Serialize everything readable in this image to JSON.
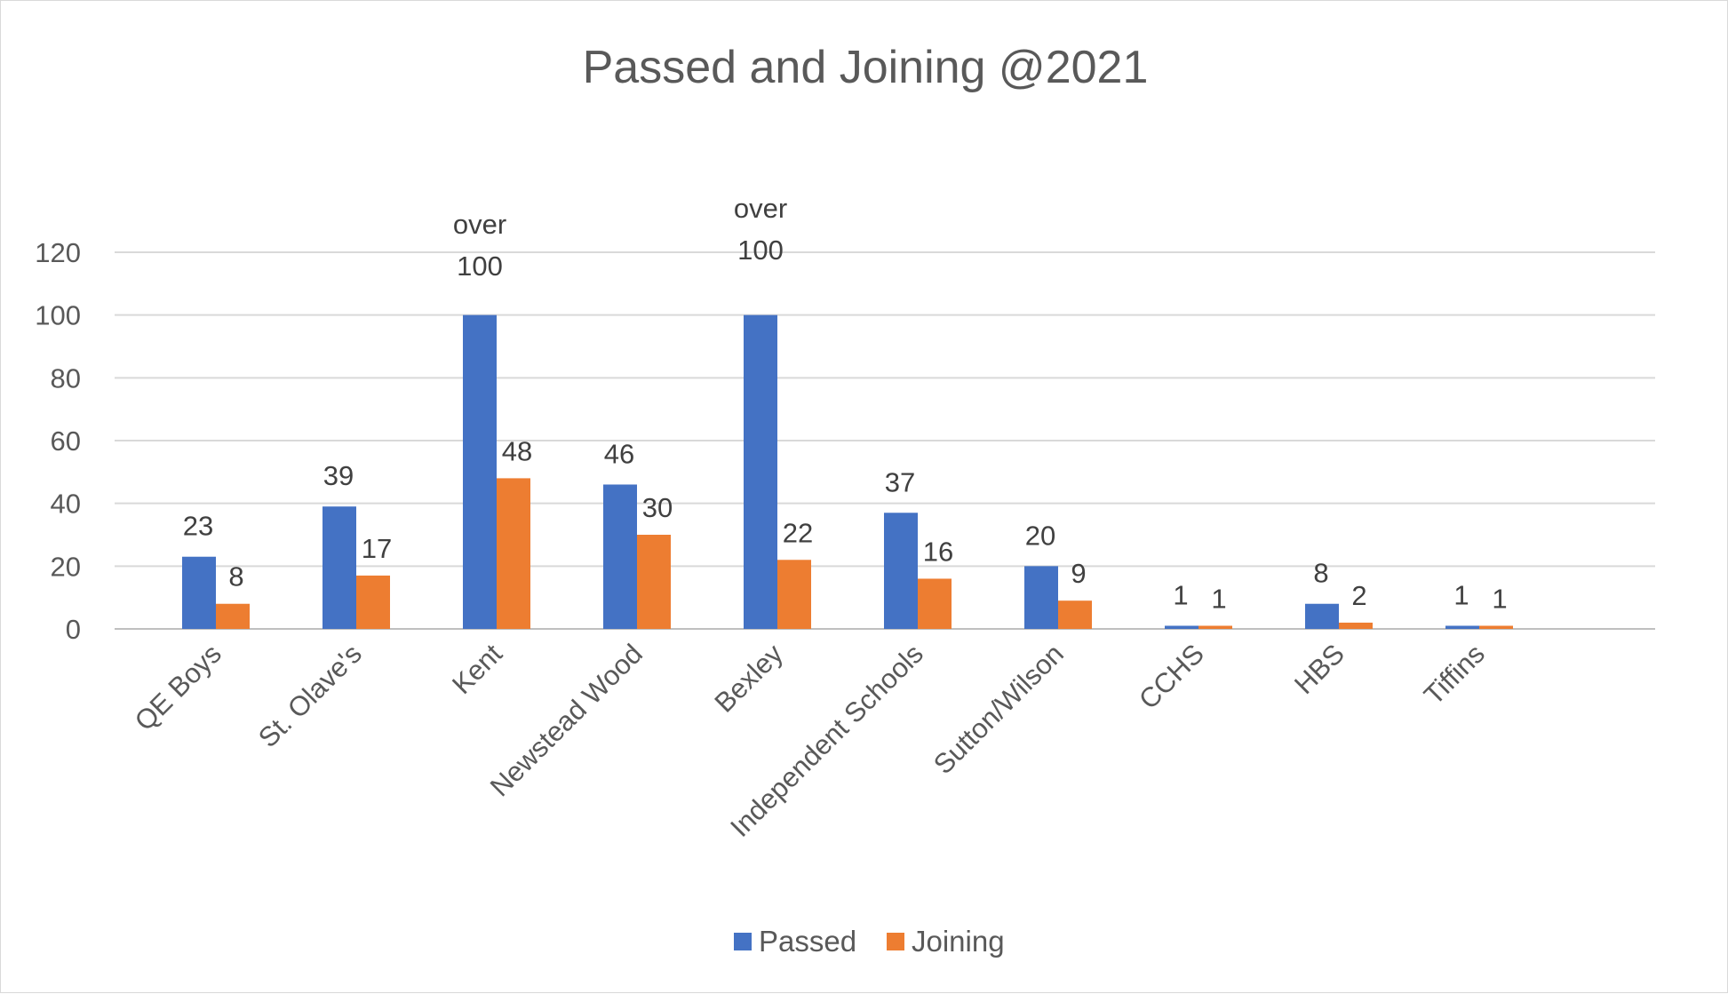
{
  "chart_data": {
    "type": "bar",
    "title": "Passed and Joining @2021",
    "xlabel": "",
    "ylabel": "",
    "ylim": [
      0,
      120
    ],
    "yticks": [
      0,
      20,
      40,
      60,
      80,
      100,
      120
    ],
    "grid": true,
    "legend": "bottom",
    "categories": [
      "QE Boys",
      "St. Olave's",
      "Kent",
      "Newstead Wood",
      "Bexley",
      "Independent Schools",
      "Sutton/Wilson",
      "CCHS",
      "HBS",
      "Tiffins"
    ],
    "series": [
      {
        "name": "Passed",
        "color": "#4472C4",
        "values": [
          23,
          39,
          100,
          46,
          100,
          37,
          20,
          1,
          8,
          1
        ],
        "labels": [
          "23",
          "39",
          [
            "over",
            "100"
          ],
          "46",
          [
            "over",
            "100"
          ],
          "37",
          "20",
          "1",
          "8",
          "1"
        ]
      },
      {
        "name": "Joining",
        "color": "#ED7D31",
        "values": [
          8,
          17,
          48,
          30,
          22,
          16,
          9,
          1,
          2,
          1
        ],
        "labels": [
          "8",
          "17",
          "48",
          "30",
          "22",
          "16",
          "9",
          "1",
          "2",
          "1"
        ]
      }
    ]
  }
}
